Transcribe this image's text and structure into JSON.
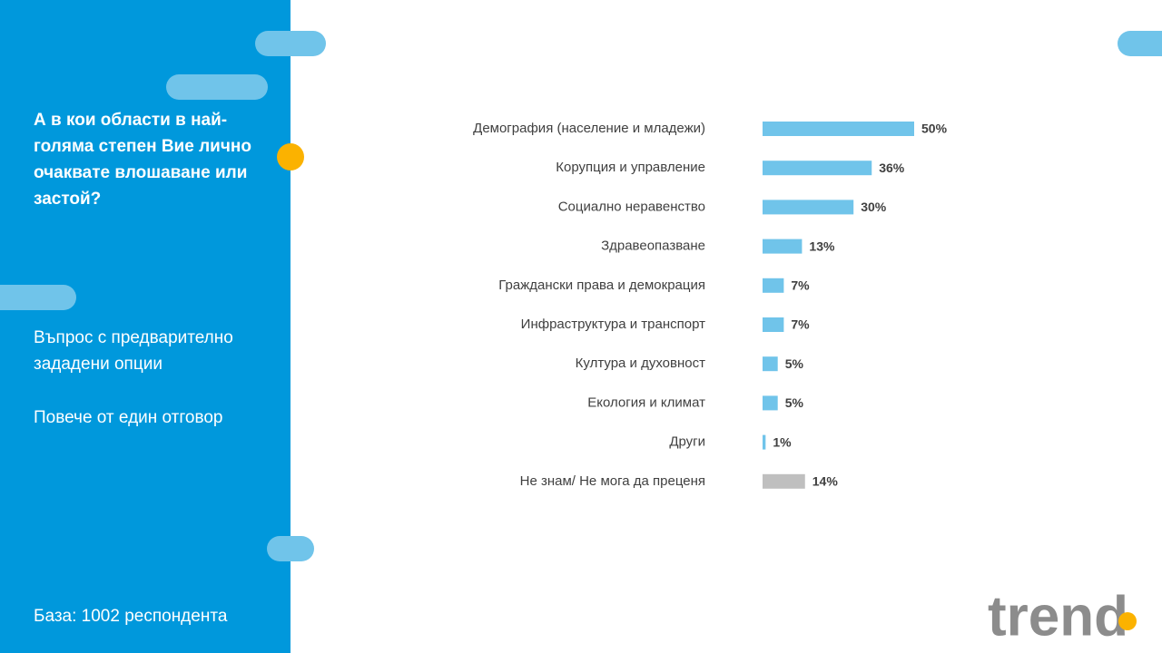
{
  "panel": {
    "question": "А в кои области в най-голяма степен Вие лично очаквате влошаване или застой?",
    "note1": "Въпрос с предварително зададени опции",
    "note2": "Повече от един отговор",
    "base": "База:  1002 респондента"
  },
  "logo": "trend",
  "chart_data": {
    "type": "hbar",
    "categories": [
      "Демография (население и младежи)",
      "Корупция и управление",
      "Социално неравенство",
      "Здравеопазване",
      "Граждански права и демокрация",
      "Инфраструктура и транспорт",
      "Култура и духовност",
      "Екология и климат",
      "Други",
      "Не знам/ Не мога да преценя"
    ],
    "values": [
      50,
      36,
      30,
      13,
      7,
      7,
      5,
      5,
      1,
      14
    ],
    "value_labels": [
      "50%",
      "36%",
      "30%",
      "13%",
      "7%",
      "7%",
      "5%",
      "5%",
      "1%",
      "14%"
    ],
    "colors": [
      "#70c4ea",
      "#70c4ea",
      "#70c4ea",
      "#70c4ea",
      "#70c4ea",
      "#70c4ea",
      "#70c4ea",
      "#70c4ea",
      "#70c4ea",
      "#bfbfbf"
    ]
  }
}
